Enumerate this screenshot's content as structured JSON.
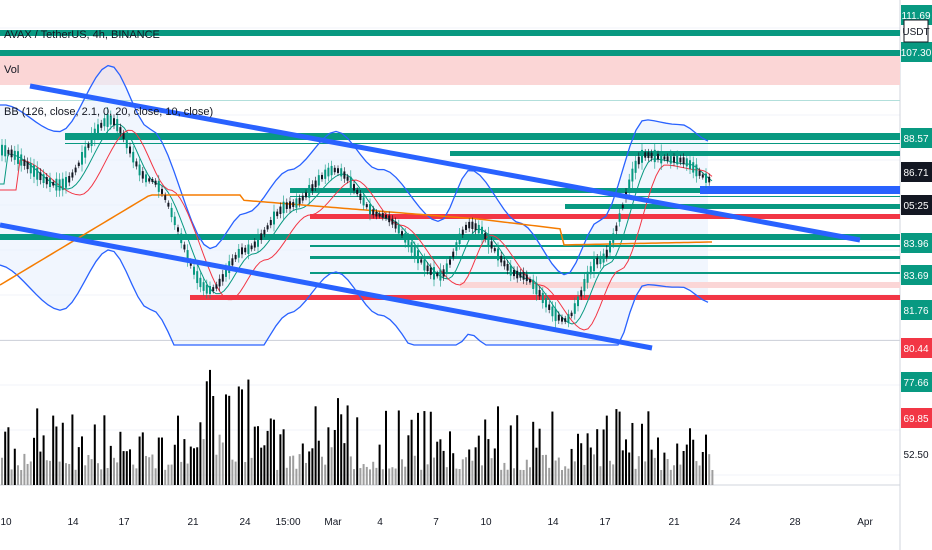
{
  "chart_data": {
    "type": "line",
    "symbol_title": "AVAX / TetherUS, 4h, BINANCE",
    "volume_label": "Vol",
    "indicator_label": "BB (126, close, 2.1, 0, 20, close, 10, close)",
    "currency": "USDT",
    "x_ticks": [
      "10",
      "14",
      "17",
      "21",
      "24",
      "15:00",
      "Mar",
      "4",
      "7",
      "10",
      "14",
      "17",
      "21",
      "24",
      "28",
      "Apr"
    ],
    "y_tags": [
      {
        "text": "111.69",
        "bg": "#089981"
      },
      {
        "text": "107.30",
        "bg": "#089981"
      },
      {
        "text": "88.57",
        "bg": "#089981"
      },
      {
        "text": "86.71",
        "bg": "#131722"
      },
      {
        "text": "05:25",
        "bg": "#131722"
      },
      {
        "text": "83.96",
        "bg": "#089981"
      },
      {
        "text": "83.69",
        "bg": "#089981"
      },
      {
        "text": "81.76",
        "bg": "#089981"
      },
      {
        "text": "80.44",
        "bg": "#f23645"
      },
      {
        "text": "77.66",
        "bg": "#089981"
      },
      {
        "text": "69.85",
        "bg": "#f23645"
      }
    ],
    "y_plain": "52.50",
    "colors": {
      "up": "#089981",
      "down": "#131722",
      "support": "#f23645",
      "trend": "#2962ff",
      "band": "#2962ff",
      "ma_fast": "#089981",
      "ma_mid": "#f23645",
      "ma_slow": "#f57c00"
    }
  }
}
